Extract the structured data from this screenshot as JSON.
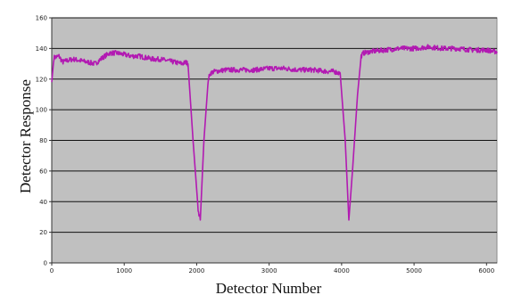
{
  "chart_data": {
    "type": "line",
    "title": "",
    "xlabel": "Detector Number",
    "ylabel": "Detector Response",
    "xlim": [
      0,
      6144
    ],
    "ylim": [
      0,
      160
    ],
    "xticks": [
      0,
      1000,
      2000,
      3000,
      4000,
      5000,
      6000
    ],
    "xtick_labels": [
      "0",
      "1000",
      "2000",
      "3000",
      "4000",
      "5000",
      "6000"
    ],
    "yticks": [
      0,
      20,
      40,
      60,
      80,
      100,
      120,
      140,
      160
    ],
    "ytick_labels": [
      "0",
      "20",
      "40",
      "60",
      "80",
      "100",
      "120",
      "140",
      "160"
    ],
    "grid": "horizontal",
    "colors": {
      "plot_bg": "#c0c0c0",
      "series": "#b21ab2",
      "grid": "#111111",
      "border": "#8c8c8c"
    },
    "series": [
      {
        "x": [
          0,
          30,
          100,
          150,
          200,
          300,
          400,
          500,
          600,
          700,
          800,
          850,
          900,
          1000,
          1100,
          1200,
          1300,
          1400,
          1500,
          1600,
          1700,
          1800,
          1850,
          1880,
          1950,
          2020,
          2050,
          2100,
          2160,
          2190,
          2250,
          2400,
          2600,
          2800,
          3000,
          3200,
          3400,
          3600,
          3800,
          3900,
          3950,
          3980,
          4050,
          4100,
          4150,
          4220,
          4270,
          4300,
          4400,
          4600,
          4800,
          5000,
          5200,
          5400,
          5600,
          5800,
          6000,
          6100,
          6144
        ],
        "y": [
          118,
          134,
          135,
          131,
          132,
          133,
          132,
          131,
          130,
          134,
          137,
          137,
          137,
          136,
          135,
          135,
          134,
          133,
          133,
          132,
          131,
          130,
          131,
          130,
          80,
          35,
          28,
          80,
          120,
          124,
          125,
          126,
          126,
          126,
          127,
          127,
          126,
          126,
          125,
          125,
          124,
          124,
          80,
          28,
          60,
          110,
          135,
          137,
          138,
          139,
          140,
          140,
          141,
          140,
          140,
          139,
          139,
          138,
          138
        ]
      }
    ]
  }
}
